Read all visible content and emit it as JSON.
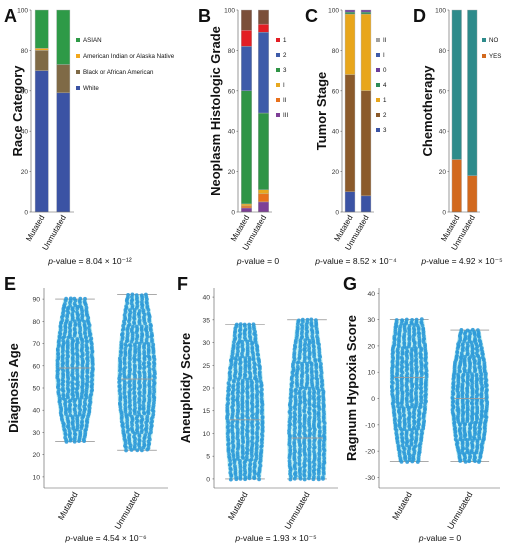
{
  "colors": {
    "race": [
      "#3b53a4",
      "#7f6a46",
      "#f2a81d",
      "#2e9a47"
    ],
    "grade": [
      "#7e3f97",
      "#e8711c",
      "#e7a820",
      "#2f9446",
      "#3e5ba9",
      "#e31e24",
      "#7b4f3a"
    ],
    "stage": [
      "#3b53a4",
      "#8b5a2b",
      "#e8a61c",
      "#2e8b57",
      "#6a3d9a",
      "#3e5ba9",
      "#a0a0a0"
    ],
    "chemo": [
      "#d2691e",
      "#2e8b8b"
    ],
    "dot": "#2f9bd8",
    "violin": "#bfeff0",
    "bar_edge": "#b2b2b2"
  },
  "chart_data": [
    {
      "id": "A",
      "type": "bar",
      "stacked": true,
      "panel_letter": "A",
      "ylabel": "Race Category",
      "categories": [
        "Mutated",
        "Unmutated"
      ],
      "ylim": [
        0,
        100
      ],
      "yticks": [
        "0",
        "20",
        "40",
        "60",
        "80",
        "100"
      ],
      "legend": {
        "placement": "right"
      },
      "series": [
        {
          "name": "White",
          "values": [
            70,
            59
          ]
        },
        {
          "name": "Black or African American",
          "values": [
            10,
            14
          ]
        },
        {
          "name": "American Indian or Alaska Native",
          "values": [
            1,
            0
          ]
        },
        {
          "name": "ASIAN",
          "values": [
            19,
            27
          ]
        }
      ],
      "pvalue": "= 8.04 × 10⁻¹²"
    },
    {
      "id": "B",
      "type": "bar",
      "stacked": true,
      "panel_letter": "B",
      "ylabel": "Neoplasm Histologic Grade",
      "categories": [
        "Mutated",
        "Unmutated"
      ],
      "ylim": [
        0,
        100
      ],
      "yticks": [
        "0",
        "20",
        "40",
        "60",
        "80",
        "100"
      ],
      "legend": {
        "placement": "right"
      },
      "series": [
        {
          "name": "III",
          "values": [
            2,
            5
          ]
        },
        {
          "name": "II",
          "values": [
            1,
            4
          ]
        },
        {
          "name": "I",
          "values": [
            1,
            2
          ]
        },
        {
          "name": "3",
          "values": [
            56,
            38
          ]
        },
        {
          "name": "2",
          "values": [
            22,
            40
          ]
        },
        {
          "name": "1",
          "values": [
            8,
            4
          ]
        },
        {
          "name": "",
          "values": [
            10,
            7
          ]
        }
      ],
      "pvalue": "= 0"
    },
    {
      "id": "C",
      "type": "bar",
      "stacked": true,
      "panel_letter": "C",
      "ylabel": "Tumor Stage",
      "categories": [
        "Mutated",
        "Unmutated"
      ],
      "ylim": [
        0,
        100
      ],
      "yticks": [
        "0",
        "20",
        "40",
        "60",
        "80",
        "100"
      ],
      "legend": {
        "placement": "right"
      },
      "series": [
        {
          "name": "3",
          "values": [
            10,
            8
          ]
        },
        {
          "name": "2",
          "values": [
            58,
            52
          ]
        },
        {
          "name": "1",
          "values": [
            30,
            38
          ]
        },
        {
          "name": "4",
          "values": [
            1,
            1
          ]
        },
        {
          "name": "0",
          "values": [
            1,
            1
          ]
        },
        {
          "name": "I",
          "values": [
            0,
            0
          ]
        },
        {
          "name": "II",
          "values": [
            0,
            0
          ]
        }
      ],
      "pvalue": "= 8.52 × 10⁻⁴"
    },
    {
      "id": "D",
      "type": "bar",
      "stacked": true,
      "panel_letter": "D",
      "ylabel": "Chemotherapy",
      "categories": [
        "Mutated",
        "Unmutated"
      ],
      "ylim": [
        0,
        100
      ],
      "yticks": [
        "0",
        "20",
        "40",
        "60",
        "80",
        "100"
      ],
      "legend": {
        "placement": "right"
      },
      "series": [
        {
          "name": "YES",
          "values": [
            26,
            18
          ]
        },
        {
          "name": "NO",
          "values": [
            74,
            82
          ]
        }
      ],
      "pvalue": "= 4.92 × 10⁻⁵"
    },
    {
      "id": "E",
      "type": "scatter",
      "panel_letter": "E",
      "ylabel": "Diagnosis Age",
      "categories": [
        "Mutated",
        "Unmutated"
      ],
      "ylim": [
        5,
        95
      ],
      "yticks": [
        10,
        20,
        30,
        40,
        50,
        60,
        70,
        80,
        90
      ],
      "groups": [
        {
          "name": "Mutated",
          "min": 26,
          "max": 90,
          "median": 59,
          "q1": 48,
          "q3": 70
        },
        {
          "name": "Unmutated",
          "min": 22,
          "max": 92,
          "median": 54,
          "q1": 44,
          "q3": 66
        }
      ],
      "pvalue": "= 4.54 × 10⁻⁶"
    },
    {
      "id": "F",
      "type": "scatter",
      "panel_letter": "F",
      "ylabel": "Aneuploidy Score",
      "categories": [
        "Mutated",
        "Unmutated"
      ],
      "ylim": [
        -2,
        42
      ],
      "yticks": [
        0,
        5,
        10,
        15,
        20,
        25,
        30,
        35,
        40
      ],
      "groups": [
        {
          "name": "Mutated",
          "min": 0,
          "max": 34,
          "median": 13,
          "q1": 6,
          "q3": 19
        },
        {
          "name": "Unmutated",
          "min": 0,
          "max": 35,
          "median": 9,
          "q1": 3,
          "q3": 16
        }
      ],
      "pvalue": "= 1.93 × 10⁻⁵"
    },
    {
      "id": "G",
      "type": "scatter",
      "panel_letter": "G",
      "ylabel": "Ragnum Hypoxia Score",
      "categories": [
        "Mutated",
        "Unmutated"
      ],
      "ylim": [
        -34,
        42
      ],
      "yticks": [
        -30,
        -20,
        -10,
        0,
        10,
        20,
        30,
        40
      ],
      "groups": [
        {
          "name": "Mutated",
          "min": -24,
          "max": 30,
          "median": 8,
          "q1": -4,
          "q3": 18
        },
        {
          "name": "Unmutated",
          "min": -24,
          "max": 26,
          "median": 0,
          "q1": -10,
          "q3": 12
        }
      ],
      "pvalue": "= 0"
    }
  ]
}
